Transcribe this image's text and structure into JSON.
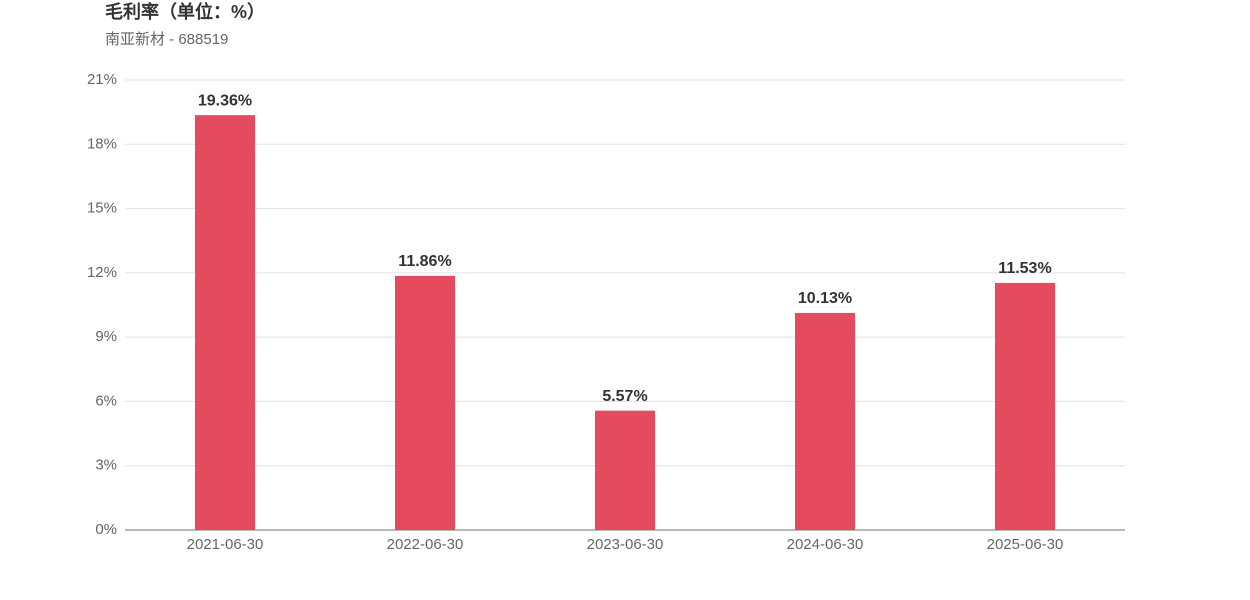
{
  "chart_data": {
    "type": "bar",
    "title": "毛利率（单位：%）",
    "subtitle": "南亚新材 - 688519",
    "categories": [
      "2021-06-30",
      "2022-06-30",
      "2023-06-30",
      "2024-06-30",
      "2025-06-30"
    ],
    "values": [
      19.36,
      11.86,
      5.57,
      10.13,
      11.53
    ],
    "value_labels": [
      "19.36%",
      "11.86%",
      "5.57%",
      "10.13%",
      "11.53%"
    ],
    "color": "#e54b5f",
    "ylim": [
      0,
      21
    ],
    "yticks": [
      {
        "value": 0,
        "label": "0%"
      },
      {
        "value": 3,
        "label": "3%"
      },
      {
        "value": 6,
        "label": "6%"
      },
      {
        "value": 9,
        "label": "9%"
      },
      {
        "value": 12,
        "label": "12%"
      },
      {
        "value": 15,
        "label": "15%"
      },
      {
        "value": 18,
        "label": "18%"
      },
      {
        "value": 21,
        "label": "21%"
      }
    ],
    "grid": true
  }
}
